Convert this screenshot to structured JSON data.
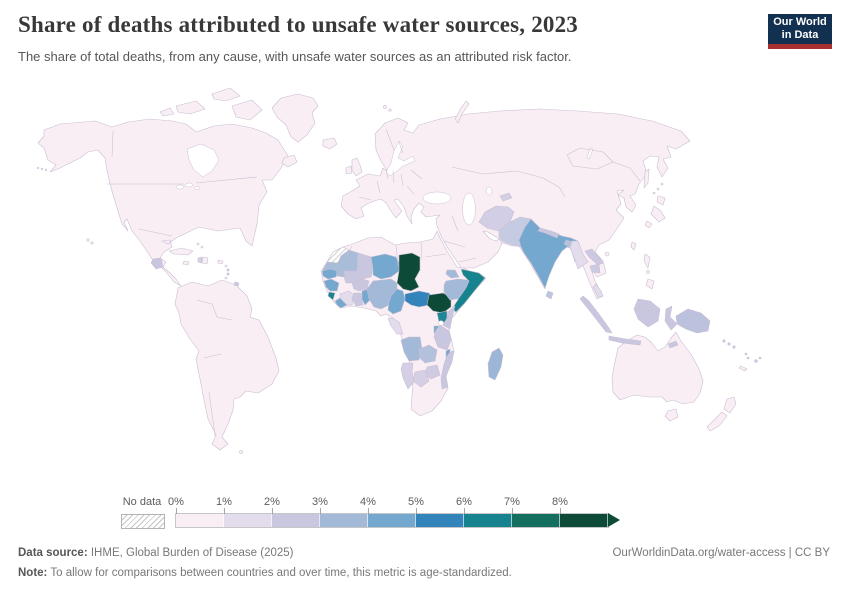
{
  "header": {
    "title": "Share of deaths attributed to unsafe water sources, 2023",
    "subtitle": "The share of total deaths, from any cause, with unsafe water sources as an attributed risk factor.",
    "logo": {
      "line1": "Our World",
      "line2": "in Data",
      "bg": "#12304f",
      "accent": "#a8302f"
    }
  },
  "legend": {
    "no_data_label": "No data",
    "tick_labels": [
      "0%",
      "1%",
      "2%",
      "3%",
      "4%",
      "5%",
      "6%",
      "7%",
      "8%"
    ],
    "bins": [
      "0-1%",
      "1-2%",
      "2-3%",
      "3-4%",
      "4-5%",
      "5-6%",
      "6-7%",
      "7-8%",
      "8%+"
    ],
    "colors": [
      "#f9eef4",
      "#e3dcec",
      "#c9c7e0",
      "#a3b9d8",
      "#74a8ce",
      "#3484bc",
      "#17838e",
      "#146f60",
      "#0d4b38"
    ]
  },
  "footer": {
    "source_label": "Data source:",
    "source_text": " IHME, Global Burden of Disease (2025)",
    "right_text": "OurWorldinData.org/water-access | CC BY",
    "note_label": "Note:",
    "note_text": " To allow for comparisons between countries and over time, this metric is age-standardized."
  },
  "map": {
    "ocean": "#ffffff",
    "land_default": "#f9eef4",
    "border_color": "#c9bed2",
    "regions": {
      "western-sahara": "no-data",
      "mauritania": "#a9bcd8",
      "senegal": "#74a8ce",
      "mali": "#c9c7e0",
      "guinea": "#74a8ce",
      "sierra-leone": "#17838e",
      "liberia": "#74a8ce",
      "cote-divoire": "#e3dcec",
      "ghana": "#c9c7e0",
      "togo-benin": "#74a8ce",
      "burkina-faso": "#c9c7e0",
      "niger": "#74a8ce",
      "nigeria": "#a3b9d8",
      "chad": "#0d4b38",
      "cameroon": "#74a8ce",
      "central-african-republic": "#3484bc",
      "south-sudan": "#0d4b38",
      "eritrea": "#a3b9d8",
      "ethiopia": "#a3b9d8",
      "somalia": "#17838e",
      "uganda": "#1f8795",
      "kenya": "#c9c7e0",
      "rwanda-burundi": "#74a8ce",
      "congo-gabon": "#e3dcec",
      "angola": "#a3b9d8",
      "zambia": "#b3c1dc",
      "tanzania": "#c9c7e0",
      "malawi": "#74a8ce",
      "mozambique": "#c9c7e0",
      "zimbabwe": "#cfcbe3",
      "botswana": "#d5cfe6",
      "namibia": "#d5cfe6",
      "madagascar": "#9bb6d7",
      "guatemala": "#c9c7e0",
      "haiti": "#d5cfe6",
      "trinidad": "#c9c7e0",
      "antilles-a": "#c9c7e0",
      "antilles-b": "#c9c7e0",
      "afghanistan": "#d2cee5",
      "tajikistan": "#d5cfe6",
      "pakistan": "#c5cbe3",
      "india": "#74a8ce",
      "nepal": "#c9c7e0",
      "bangladesh": "#b3c4de",
      "myanmar": "#e3dcec",
      "sri-lanka": "#b9c6de",
      "laos": "#ccc9e2",
      "cambodia": "#ccc9e2",
      "malaysia-peninsula": "#e3dcec",
      "sumatra": "#c9c7e0",
      "java": "#c9c7e0",
      "borneo": "#c9c7e0",
      "sulawesi": "#c9c7e0",
      "timor": "#c9c7e0",
      "moluccas-a": "#c9c7e0",
      "moluccas-b": "#c9c7e0",
      "new-guinea": "#bcc2dd",
      "solomon-a": "#c9c7e0",
      "solomon-b": "#c9c7e0",
      "solomon-c": "#c9c7e0",
      "vanuatu-a": "#c9c7e0",
      "vanuatu-b": "#c9c7e0",
      "fiji-a": "#c9c7e0",
      "fiji-b": "#c9c7e0"
    }
  },
  "chart_data": {
    "type": "choropleth-map",
    "title": "Share of deaths attributed to unsafe water sources, 2023",
    "year": 2023,
    "unit": "% of total deaths",
    "bins": [
      "0-1%",
      "1-2%",
      "2-3%",
      "3-4%",
      "4-5%",
      "5-6%",
      "6-7%",
      "7-8%",
      "8%+",
      "No data"
    ],
    "bin_colors": [
      "#f9eef4",
      "#e3dcec",
      "#c9c7e0",
      "#a3b9d8",
      "#74a8ce",
      "#3484bc",
      "#17838e",
      "#146f60",
      "#0d4b38",
      "hatched"
    ],
    "legend_position": "bottom",
    "default_bin_note": "All other shown countries (Americas, Europe, North Africa, Middle East, Russia, China, Australia, Japan): 0-1%",
    "countries": [
      {
        "entity": "Chad",
        "value": "8%+"
      },
      {
        "entity": "South Sudan",
        "value": "8%+"
      },
      {
        "entity": "Somalia",
        "value": "6-7%"
      },
      {
        "entity": "Sierra Leone",
        "value": "6-7%"
      },
      {
        "entity": "Uganda",
        "value": "6-7%"
      },
      {
        "entity": "Central African Republic",
        "value": "5-6%"
      },
      {
        "entity": "Niger",
        "value": "4-5%"
      },
      {
        "entity": "Guinea",
        "value": "4-5%"
      },
      {
        "entity": "Liberia",
        "value": "4-5%"
      },
      {
        "entity": "Senegal",
        "value": "4-5%"
      },
      {
        "entity": "Cameroon",
        "value": "4-5%"
      },
      {
        "entity": "Togo",
        "value": "4-5%"
      },
      {
        "entity": "Benin",
        "value": "4-5%"
      },
      {
        "entity": "Malawi",
        "value": "4-5%"
      },
      {
        "entity": "Rwanda",
        "value": "4-5%"
      },
      {
        "entity": "Burundi",
        "value": "4-5%"
      },
      {
        "entity": "India",
        "value": "4-5%"
      },
      {
        "entity": "Nigeria",
        "value": "3-4%"
      },
      {
        "entity": "Ethiopia",
        "value": "3-4%"
      },
      {
        "entity": "Eritrea",
        "value": "3-4%"
      },
      {
        "entity": "Angola",
        "value": "3-4%"
      },
      {
        "entity": "Madagascar",
        "value": "3-4%"
      },
      {
        "entity": "Mauritania",
        "value": "3-4%"
      },
      {
        "entity": "Bangladesh",
        "value": "3-4%"
      },
      {
        "entity": "Mali",
        "value": "2-3%"
      },
      {
        "entity": "Burkina Faso",
        "value": "2-3%"
      },
      {
        "entity": "Ghana",
        "value": "2-3%"
      },
      {
        "entity": "Kenya",
        "value": "2-3%"
      },
      {
        "entity": "Tanzania",
        "value": "2-3%"
      },
      {
        "entity": "Zambia",
        "value": "2-3%"
      },
      {
        "entity": "Mozambique",
        "value": "2-3%"
      },
      {
        "entity": "Zimbabwe",
        "value": "2-3%"
      },
      {
        "entity": "Pakistan",
        "value": "2-3%"
      },
      {
        "entity": "Nepal",
        "value": "2-3%"
      },
      {
        "entity": "Laos",
        "value": "2-3%"
      },
      {
        "entity": "Cambodia",
        "value": "2-3%"
      },
      {
        "entity": "Indonesia",
        "value": "2-3%"
      },
      {
        "entity": "Papua New Guinea",
        "value": "2-3%"
      },
      {
        "entity": "Sri Lanka",
        "value": "2-3%"
      },
      {
        "entity": "Guatemala",
        "value": "2-3%"
      },
      {
        "entity": "Haiti",
        "value": "2-3%"
      },
      {
        "entity": "Cote d'Ivoire",
        "value": "1-2%"
      },
      {
        "entity": "Myanmar",
        "value": "1-2%"
      },
      {
        "entity": "Democratic Republic of Congo",
        "value": "1-2%"
      },
      {
        "entity": "Congo",
        "value": "1-2%"
      },
      {
        "entity": "Gabon",
        "value": "1-2%"
      },
      {
        "entity": "Botswana",
        "value": "1-2%"
      },
      {
        "entity": "Namibia",
        "value": "1-2%"
      },
      {
        "entity": "Afghanistan",
        "value": "1-2%"
      },
      {
        "entity": "Tajikistan",
        "value": "1-2%"
      },
      {
        "entity": "Western Sahara",
        "value": "No data"
      }
    ]
  }
}
